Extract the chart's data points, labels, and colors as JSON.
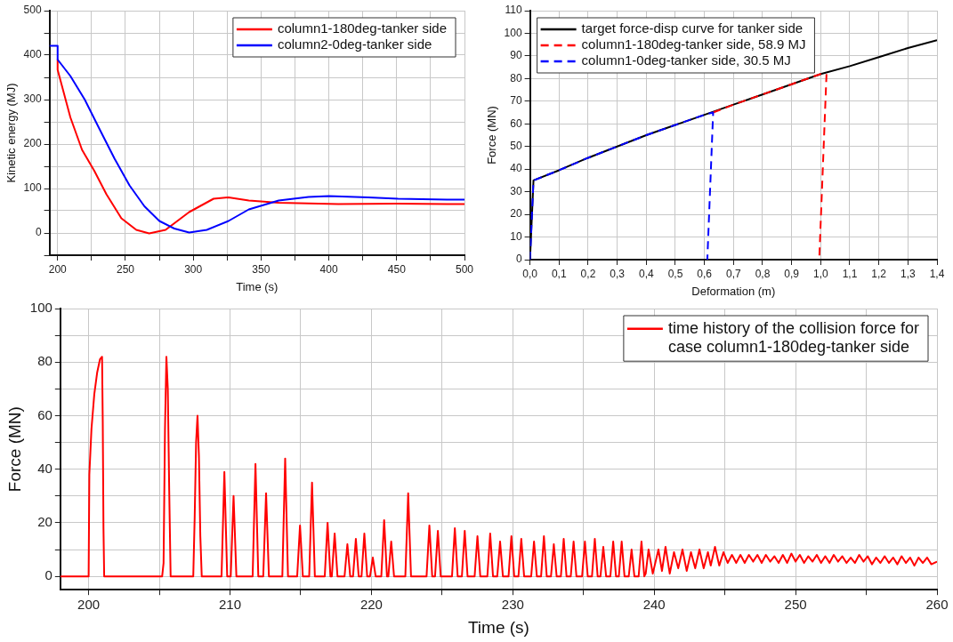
{
  "chart_data": [
    {
      "type": "line",
      "xlabel": "Time (s)",
      "ylabel": "Kinetic energy (MJ)",
      "xlim": [
        194,
        500
      ],
      "ylim": [
        -50,
        500
      ],
      "xticks": [
        200,
        {
          "value": 225,
          "label": null
        },
        250,
        {
          "value": 275,
          "label": null
        },
        300,
        {
          "value": 325,
          "label": null
        },
        350,
        {
          "value": 375,
          "label": null
        },
        400,
        {
          "value": 425,
          "label": null
        },
        450,
        {
          "value": 475,
          "label": null
        },
        500
      ],
      "yticks": [
        {
          "value": -50,
          "label": null
        },
        0,
        {
          "value": 50,
          "label": null
        },
        100,
        {
          "value": 150,
          "label": null
        },
        200,
        {
          "value": 250,
          "label": null
        },
        300,
        {
          "value": 350,
          "label": null
        },
        400,
        {
          "value": 450,
          "label": null
        },
        500
      ],
      "grid": true,
      "legend": "top right",
      "line_style": "solid",
      "series": [
        {
          "name": "column1-180deg-tanker side",
          "color": "#ff0000",
          "x": [
            200,
            200,
            209.4,
            218,
            227,
            236,
            247,
            258,
            267.5,
            279.6,
            297,
            315,
            326,
            341,
            363,
            407,
            450,
            487,
            500
          ],
          "values": [
            390,
            367,
            260,
            187,
            140,
            87,
            33,
            7,
            -1,
            7,
            47,
            77,
            80,
            73,
            68,
            65,
            66,
            65,
            65
          ]
        },
        {
          "name": "column2-0deg-tanker side",
          "color": "#0000ff",
          "x": [
            194,
            200,
            200,
            209.4,
            220,
            231,
            242,
            253,
            264,
            275,
            286,
            297,
            310,
            326,
            341,
            363,
            385,
            400,
            429,
            451,
            487,
            500
          ],
          "values": [
            421,
            421,
            390,
            353,
            300,
            233,
            167,
            107,
            60,
            27,
            10,
            1,
            7,
            27,
            53,
            73,
            81,
            83,
            80,
            77,
            75,
            75
          ]
        }
      ]
    },
    {
      "type": "line",
      "xlabel": "Deformation (m)",
      "ylabel": "Force (MN)",
      "xlim": [
        0,
        1.4
      ],
      "ylim": [
        0,
        110
      ],
      "xticks": [
        {
          "value": 0,
          "label": "0,0"
        },
        {
          "value": 0.1,
          "label": "0,1"
        },
        {
          "value": 0.2,
          "label": "0,2"
        },
        {
          "value": 0.3,
          "label": "0,3"
        },
        {
          "value": 0.4,
          "label": "0,4"
        },
        {
          "value": 0.5,
          "label": "0,5"
        },
        {
          "value": 0.6,
          "label": "0,6"
        },
        {
          "value": 0.7,
          "label": "0,7"
        },
        {
          "value": 0.8,
          "label": "0,8"
        },
        {
          "value": 0.9,
          "label": "0,9"
        },
        {
          "value": 1.0,
          "label": "1,0"
        },
        {
          "value": 1.1,
          "label": "1,1"
        },
        {
          "value": 1.2,
          "label": "1,2"
        },
        {
          "value": 1.3,
          "label": "1,3"
        },
        {
          "value": 1.4,
          "label": "1,4"
        }
      ],
      "yticks": [
        0,
        10,
        20,
        30,
        40,
        50,
        60,
        70,
        80,
        90,
        100,
        110
      ],
      "grid": true,
      "legend": "top left",
      "series": [
        {
          "name": "target force-disp curve for tanker side",
          "color": "#000000",
          "line_style": "solid",
          "x": [
            0,
            0.012,
            0.1,
            0.2,
            0.3,
            0.4,
            0.5,
            0.6,
            0.7,
            0.8,
            0.9,
            1.0,
            1.1,
            1.2,
            1.3,
            1.4
          ],
          "values": [
            0,
            35,
            39.5,
            45,
            50,
            55,
            59.5,
            64,
            68.5,
            73,
            77.5,
            82,
            85.5,
            89.5,
            93.5,
            97
          ]
        },
        {
          "name": "column1-180deg-tanker side, 58.9 MJ",
          "color": "#ff0000",
          "line_style": "dashed",
          "x": [
            0.63,
            0.7,
            0.8,
            0.9,
            1.0,
            1.02,
            0.995
          ],
          "values": [
            65,
            68.5,
            73,
            77.5,
            82,
            82,
            0
          ]
        },
        {
          "name": "column1-0deg-tanker side, 30.5 MJ",
          "color": "#0000ff",
          "line_style": "dashed",
          "x": [
            0,
            0.012,
            0.1,
            0.2,
            0.3,
            0.4,
            0.5,
            0.6,
            0.63,
            0.61
          ],
          "values": [
            0,
            35,
            39.5,
            45,
            50,
            55,
            59.5,
            64,
            65,
            0
          ]
        }
      ]
    },
    {
      "type": "line",
      "xlabel": "Time (s)",
      "ylabel": "Force (MN)",
      "xlim": [
        198,
        260
      ],
      "ylim": [
        -5,
        100
      ],
      "xticks": [
        200,
        {
          "value": 205,
          "label": null
        },
        210,
        {
          "value": 215,
          "label": null
        },
        220,
        {
          "value": 225,
          "label": null
        },
        230,
        {
          "value": 235,
          "label": null
        },
        240,
        {
          "value": 245,
          "label": null
        },
        250,
        {
          "value": 255,
          "label": null
        },
        260
      ],
      "yticks": [
        0,
        {
          "value": 10,
          "label": null
        },
        20,
        {
          "value": 30,
          "label": null
        },
        40,
        {
          "value": 50,
          "label": null
        },
        60,
        {
          "value": 70,
          "label": null
        },
        80,
        {
          "value": 90,
          "label": null
        },
        100
      ],
      "grid": true,
      "legend": "top right",
      "line_style": "solid",
      "series": [
        {
          "name": "time history of the collision force for case column1-180deg-tanker side",
          "color": "#ff0000",
          "x": [
            198,
            200,
            200.05,
            200.2,
            200.4,
            200.6,
            200.8,
            200.95,
            201.0,
            201.05,
            201.1,
            205.2,
            205.3,
            205.4,
            205.5,
            205.6,
            205.7,
            205.8,
            207.4,
            207.5,
            207.6,
            207.7,
            207.8,
            207.9,
            208.0,
            209.4,
            209.6,
            209.8,
            210.05,
            210.25,
            210.45,
            211.6,
            211.8,
            212.0,
            212.35,
            212.55,
            212.75,
            213.7,
            213.9,
            214.1,
            214.75,
            214.95,
            215.15,
            215.6,
            215.8,
            216.0,
            216.7,
            216.9,
            217.1,
            217.2,
            217.4,
            217.6,
            218.1,
            218.3,
            218.5,
            218.7,
            218.9,
            219.1,
            219.3,
            219.5,
            219.7,
            219.9,
            220.1,
            220.3,
            220.7,
            220.9,
            221.1,
            221.2,
            221.4,
            221.6,
            222.4,
            222.6,
            222.8,
            223.9,
            224.1,
            224.3,
            224.5,
            224.7,
            224.9,
            225.7,
            225.9,
            226.1,
            226.4,
            226.6,
            226.8,
            227.3,
            227.5,
            227.7,
            228.2,
            228.4,
            228.6,
            228.9,
            229.1,
            229.3,
            229.7,
            229.9,
            230.1,
            230.4,
            230.6,
            230.8,
            231.3,
            231.5,
            231.7,
            232.0,
            232.2,
            232.4,
            232.7,
            232.9,
            233.1,
            233.4,
            233.6,
            233.8,
            234.1,
            234.3,
            234.5,
            234.9,
            235.1,
            235.3,
            235.6,
            235.8,
            236.0,
            236.2,
            236.4,
            236.6,
            236.9,
            237.1,
            237.3,
            237.5,
            237.7,
            237.9,
            238.2,
            238.4,
            238.6,
            238.9,
            239.1,
            239.3,
            239.4,
            239.6,
            239.9,
            240.3,
            240.55,
            240.8,
            241.1,
            241.4,
            241.7,
            242.0,
            242.3,
            242.6,
            242.9,
            243.2,
            243.5,
            243.8,
            244.0,
            244.3,
            244.6,
            244.9,
            245.2,
            245.5,
            245.8,
            246.1,
            246.4,
            246.7,
            247.0,
            247.3,
            247.6,
            247.9,
            248.2,
            248.5,
            248.8,
            249.1,
            249.4,
            249.7,
            250.0,
            250.3,
            250.6,
            250.9,
            251.2,
            251.5,
            251.8,
            252.1,
            252.4,
            252.7,
            253.0,
            253.3,
            253.6,
            253.9,
            254.2,
            254.5,
            254.8,
            255.1,
            255.4,
            255.7,
            256.0,
            256.3,
            256.6,
            256.9,
            257.2,
            257.5,
            257.8,
            258.1,
            258.4,
            258.7,
            259.0,
            259.3,
            259.6,
            260.0
          ],
          "values": [
            0,
            0,
            38,
            55,
            68,
            76,
            81,
            82,
            57,
            18,
            0,
            0,
            5,
            55,
            82,
            70,
            32,
            0,
            0,
            22,
            50,
            60,
            45,
            15,
            0,
            0,
            39,
            0,
            0,
            30,
            0,
            0,
            42,
            0,
            0,
            31,
            0,
            0,
            44,
            0,
            0,
            19,
            0,
            0,
            35,
            0,
            0,
            20,
            0,
            0,
            16,
            0,
            0,
            12,
            0,
            0,
            14,
            0,
            0,
            16,
            0,
            0,
            7,
            0,
            0,
            21,
            0,
            0,
            13,
            0,
            0,
            31,
            0,
            0,
            19,
            0,
            0,
            17,
            0,
            0,
            18,
            0,
            0,
            17,
            0,
            0,
            15,
            0,
            0,
            16,
            0,
            0,
            13,
            0,
            0,
            15,
            0,
            0,
            14,
            0,
            0,
            13,
            0,
            0,
            15,
            0,
            0,
            12,
            0,
            0,
            14,
            0,
            0,
            13,
            0,
            0,
            13,
            0,
            0,
            14,
            0,
            0,
            11,
            0,
            0,
            13,
            0,
            0,
            13,
            0,
            0,
            10,
            0,
            0,
            13,
            0,
            1,
            10,
            1,
            10,
            2,
            11,
            1,
            9,
            3,
            10,
            2,
            9,
            3,
            10,
            3,
            9,
            4,
            11,
            4,
            9,
            5,
            8,
            5,
            8,
            5,
            8,
            5.5,
            8,
            5,
            8,
            5.5,
            7.5,
            5,
            8,
            5,
            8.5,
            5.5,
            8,
            5,
            7.5,
            5.5,
            8,
            5,
            7.5,
            5,
            8,
            5.5,
            7.5,
            5,
            7,
            5,
            8,
            5.5,
            7.5,
            4.5,
            7,
            5,
            7.5,
            5,
            7,
            4.5,
            7.5,
            5,
            7,
            4,
            7,
            5,
            7,
            4.5,
            5.5
          ]
        }
      ]
    }
  ]
}
